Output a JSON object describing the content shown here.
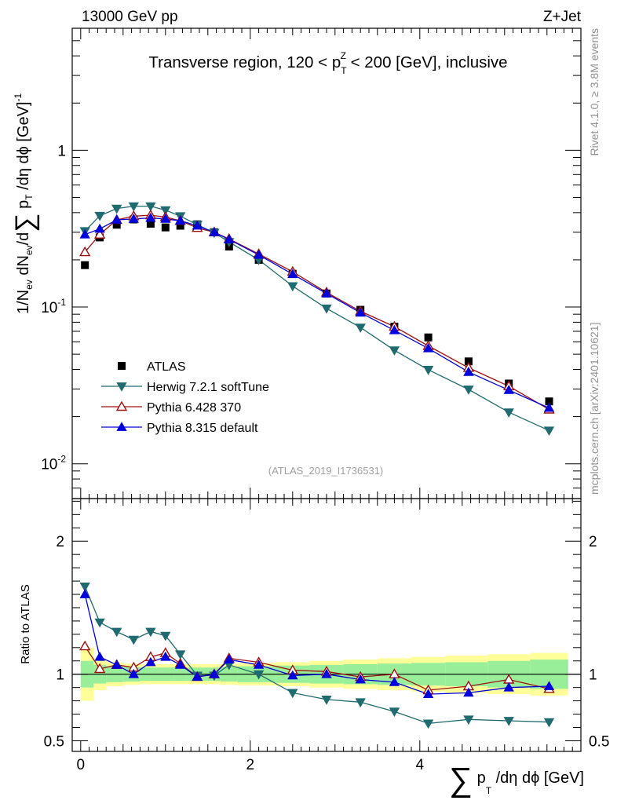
{
  "header": {
    "left": "13000 GeV pp",
    "right": "Z+Jet"
  },
  "side_text": {
    "rivet": "Rivet 4.1.0, ≥ 3.8M events",
    "mcplots": "mcplots.cern.ch [arXiv:2401.10621]"
  },
  "chart_data": [
    {
      "type": "scatter",
      "panel": "main",
      "title": "Transverse region, 120 < p_T^Z < 200 [GeV], inclusive",
      "title_parts": {
        "pre": "Transverse region, 120 < p",
        "sub": "T",
        "sup": "Z",
        "post": " < 200 [GeV], inclusive"
      },
      "ylabel": "1/N_ev dN_ev/dΣ p_T/dη dϕ [GeV]^-1",
      "ylabel_parts": {
        "a": "1/N",
        "a_sub": "ev",
        "b": " dN",
        "b_sub": "ev",
        "c": "/d",
        "sigma": "∑",
        "d": " p",
        "d_sub": "T",
        "e": " /dη dϕ  [GeV]",
        "e_sup": "-1"
      },
      "yscale": "log",
      "ylim": [
        0.006,
        6
      ],
      "xlim": [
        -0.1,
        5.9
      ],
      "y_ticks": [
        {
          "value": 0.01,
          "base": "10",
          "exp": "-2"
        },
        {
          "value": 0.1,
          "base": "10",
          "exp": "-1"
        },
        {
          "value": 1,
          "base": "1",
          "exp": ""
        }
      ],
      "watermark": "(ATLAS_2019_I1736531)",
      "legend_position": "lower-left",
      "x": [
        0.05,
        0.225,
        0.425,
        0.625,
        0.825,
        1.0,
        1.175,
        1.375,
        1.575,
        1.75,
        2.1,
        2.5,
        2.9,
        3.3,
        3.7,
        4.1,
        4.575,
        5.05,
        5.525
      ],
      "series": [
        {
          "name": "ATLAS",
          "marker": "square",
          "color": "#000000",
          "values": [
            0.185,
            0.278,
            0.335,
            0.362,
            0.34,
            0.322,
            0.33,
            0.337,
            0.3,
            0.243,
            0.2,
            0.163,
            0.122,
            0.096,
            0.075,
            0.064,
            0.045,
            0.0325,
            0.025
          ]
        },
        {
          "name": "Herwig 7.2.1 softTune",
          "marker": "triangle-down",
          "color": "#1f6b70",
          "values": [
            0.305,
            0.382,
            0.425,
            0.44,
            0.44,
            0.415,
            0.38,
            0.335,
            0.298,
            0.26,
            0.2,
            0.136,
            0.098,
            0.074,
            0.053,
            0.0398,
            0.0298,
            0.0213,
            0.0163
          ]
        },
        {
          "name": "Pythia 6.428 370",
          "marker": "triangle-open",
          "color": "#a01010",
          "values": [
            0.224,
            0.29,
            0.36,
            0.38,
            0.385,
            0.375,
            0.355,
            0.32,
            0.3,
            0.272,
            0.218,
            0.168,
            0.124,
            0.094,
            0.075,
            0.0565,
            0.041,
            0.0313,
            0.0222
          ]
        },
        {
          "name": "Pythia 8.315 default",
          "marker": "triangle-up",
          "color": "#0000dd",
          "values": [
            0.29,
            0.315,
            0.36,
            0.365,
            0.37,
            0.365,
            0.355,
            0.33,
            0.3,
            0.27,
            0.215,
            0.162,
            0.122,
            0.092,
            0.071,
            0.0545,
            0.0385,
            0.0295,
            0.0227
          ]
        }
      ]
    },
    {
      "type": "line",
      "panel": "ratio",
      "ylabel": "Ratio to ATLAS",
      "yscale": "linear",
      "ylim": [
        0.42,
        2.32
      ],
      "xlim": [
        -0.1,
        5.9
      ],
      "y_ticks": [
        0.5,
        1,
        2
      ],
      "y_tick_labels": [
        "0.5",
        "1",
        "2"
      ],
      "x_ticks": [
        0,
        2,
        4
      ],
      "x_tick_labels": [
        "0",
        "2",
        "4"
      ],
      "xlabel_parts": {
        "sigma": "∑",
        "a": " p",
        "a_sub": "T",
        "b": " /dη dϕ [GeV]"
      },
      "band_edges": [
        0.0,
        0.15,
        0.3,
        0.5,
        0.7,
        0.9,
        1.1,
        1.25,
        1.45,
        1.65,
        1.85,
        2.3,
        2.7,
        3.1,
        3.5,
        3.9,
        4.3,
        4.8,
        5.3,
        5.75
      ],
      "band_inner": [
        0.1,
        0.07,
        0.06,
        0.055,
        0.05,
        0.05,
        0.05,
        0.05,
        0.05,
        0.055,
        0.06,
        0.065,
        0.07,
        0.075,
        0.08,
        0.085,
        0.09,
        0.1,
        0.11
      ],
      "band_outer": [
        0.2,
        0.12,
        0.09,
        0.08,
        0.075,
        0.075,
        0.075,
        0.075,
        0.075,
        0.08,
        0.085,
        0.09,
        0.1,
        0.11,
        0.12,
        0.13,
        0.14,
        0.15,
        0.16
      ],
      "series": [
        {
          "name": "Herwig 7.2.1 softTune",
          "marker": "triangle-down",
          "color": "#1f6b70",
          "values": [
            1.66,
            1.39,
            1.32,
            1.26,
            1.32,
            1.29,
            1.15,
            0.99,
            0.99,
            1.07,
            1.0,
            0.86,
            0.81,
            0.79,
            0.72,
            0.63,
            0.66,
            0.65,
            0.64
          ]
        },
        {
          "name": "Pythia 6.428 370",
          "marker": "triangle-open",
          "color": "#a01010",
          "values": [
            1.21,
            1.04,
            1.07,
            1.05,
            1.13,
            1.16,
            1.08,
            0.98,
            1.0,
            1.12,
            1.09,
            1.03,
            1.02,
            0.98,
            1.0,
            0.88,
            0.91,
            0.96,
            0.89
          ]
        },
        {
          "name": "Pythia 8.315 default",
          "marker": "triangle-up",
          "color": "#0000dd",
          "values": [
            1.6,
            1.13,
            1.07,
            1.0,
            1.09,
            1.13,
            1.07,
            0.98,
            1.0,
            1.11,
            1.07,
            0.99,
            1.0,
            0.96,
            0.94,
            0.85,
            0.86,
            0.9,
            0.91
          ]
        }
      ]
    }
  ]
}
